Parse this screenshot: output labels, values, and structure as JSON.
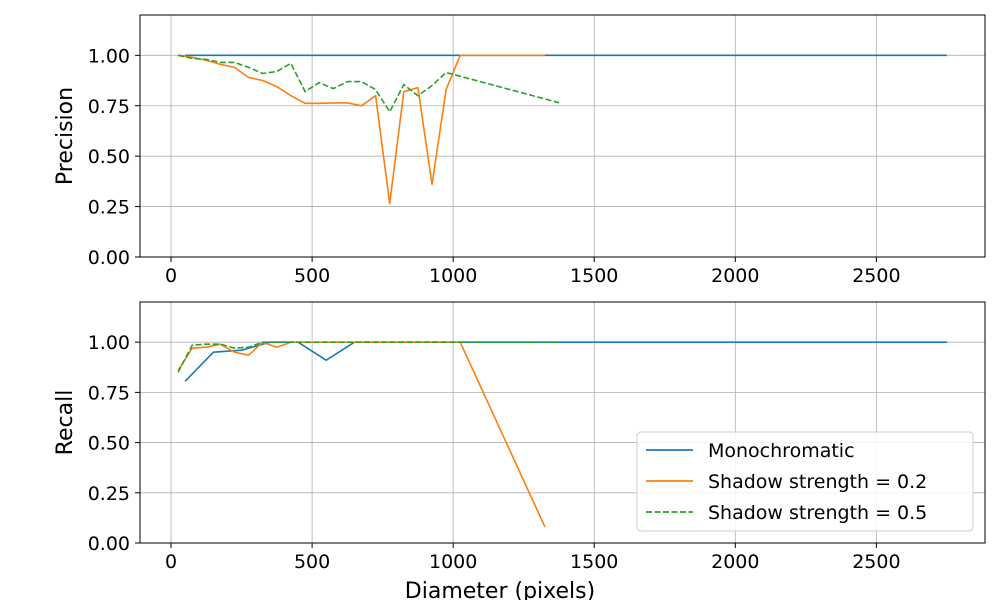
{
  "chart_data": [
    {
      "type": "line",
      "ylabel": "Precision",
      "xlim": [
        -110,
        2885
      ],
      "ylim": [
        0,
        1.2
      ],
      "xticks": [
        0,
        500,
        1000,
        1500,
        2000,
        2500
      ],
      "yticks": [
        0,
        0.25,
        0.5,
        0.75,
        1.0
      ],
      "xtick_labels": [
        "0",
        "500",
        "1000",
        "1500",
        "2000",
        "2500"
      ],
      "ytick_labels": [
        "0.00",
        "0.25",
        "0.50",
        "0.75",
        "1.00"
      ],
      "grid": true,
      "series": [
        {
          "name": "Monochromatic",
          "color": "#1f77b4",
          "dash": "solid",
          "points": [
            [
              50,
              1.0
            ],
            [
              150,
              1.0
            ],
            [
              250,
              1.0
            ],
            [
              350,
              1.0
            ],
            [
              450,
              1.0
            ],
            [
              550,
              1.0
            ],
            [
              650,
              1.0
            ],
            [
              750,
              1.0
            ],
            [
              850,
              1.0
            ],
            [
              950,
              1.0
            ],
            [
              1050,
              1.0
            ],
            [
              1350,
              1.0
            ],
            [
              1500,
              1.0
            ],
            [
              2000,
              1.0
            ],
            [
              2500,
              1.0
            ],
            [
              2750,
              1.0
            ]
          ]
        },
        {
          "name": "Shadow strength = 0.2",
          "color": "#ff7f0e",
          "dash": "solid",
          "points": [
            [
              25,
              1.0
            ],
            [
              75,
              0.99
            ],
            [
              125,
              0.975
            ],
            [
              175,
              0.955
            ],
            [
              225,
              0.94
            ],
            [
              275,
              0.89
            ],
            [
              325,
              0.875
            ],
            [
              375,
              0.845
            ],
            [
              425,
              0.8
            ],
            [
              475,
              0.762
            ],
            [
              525,
              0.762
            ],
            [
              575,
              0.764
            ],
            [
              625,
              0.764
            ],
            [
              675,
              0.75
            ],
            [
              725,
              0.8
            ],
            [
              775,
              0.265
            ],
            [
              825,
              0.82
            ],
            [
              875,
              0.84
            ],
            [
              925,
              0.36
            ],
            [
              975,
              0.83
            ],
            [
              1025,
              1.0
            ],
            [
              1325,
              1.0
            ]
          ]
        },
        {
          "name": "Shadow strength = 0.5",
          "color": "#2ca02c",
          "dash": "dashed",
          "points": [
            [
              25,
              1.0
            ],
            [
              75,
              0.985
            ],
            [
              125,
              0.98
            ],
            [
              175,
              0.965
            ],
            [
              225,
              0.965
            ],
            [
              275,
              0.94
            ],
            [
              325,
              0.91
            ],
            [
              375,
              0.92
            ],
            [
              425,
              0.96
            ],
            [
              475,
              0.82
            ],
            [
              525,
              0.865
            ],
            [
              575,
              0.835
            ],
            [
              625,
              0.87
            ],
            [
              675,
              0.87
            ],
            [
              725,
              0.83
            ],
            [
              775,
              0.72
            ],
            [
              825,
              0.855
            ],
            [
              875,
              0.8
            ],
            [
              925,
              0.85
            ],
            [
              975,
              0.915
            ],
            [
              1375,
              0.765
            ]
          ]
        }
      ]
    },
    {
      "type": "line",
      "xlabel": "Diameter (pixels)",
      "ylabel": "Recall",
      "xlim": [
        -110,
        2885
      ],
      "ylim": [
        0,
        1.2
      ],
      "xticks": [
        0,
        500,
        1000,
        1500,
        2000,
        2500
      ],
      "yticks": [
        0,
        0.25,
        0.5,
        0.75,
        1.0
      ],
      "xtick_labels": [
        "0",
        "500",
        "1000",
        "1500",
        "2000",
        "2500"
      ],
      "ytick_labels": [
        "0.00",
        "0.25",
        "0.50",
        "0.75",
        "1.00"
      ],
      "grid": true,
      "legend_position": "lower-right",
      "series": [
        {
          "name": "Monochromatic",
          "color": "#1f77b4",
          "dash": "solid",
          "points": [
            [
              50,
              0.805
            ],
            [
              150,
              0.95
            ],
            [
              250,
              0.96
            ],
            [
              350,
              1.0
            ],
            [
              450,
              1.0
            ],
            [
              550,
              0.91
            ],
            [
              650,
              1.0
            ],
            [
              750,
              1.0
            ],
            [
              1000,
              1.0
            ],
            [
              1500,
              1.0
            ],
            [
              2000,
              1.0
            ],
            [
              2750,
              1.0
            ]
          ]
        },
        {
          "name": "Shadow strength = 0.2",
          "color": "#ff7f0e",
          "dash": "solid",
          "points": [
            [
              25,
              0.86
            ],
            [
              75,
              0.97
            ],
            [
              125,
              0.975
            ],
            [
              175,
              0.99
            ],
            [
              225,
              0.95
            ],
            [
              275,
              0.935
            ],
            [
              325,
              1.0
            ],
            [
              375,
              0.975
            ],
            [
              425,
              1.0
            ],
            [
              475,
              1.0
            ],
            [
              525,
              1.0
            ],
            [
              1025,
              1.0
            ],
            [
              1325,
              0.08
            ]
          ]
        },
        {
          "name": "Shadow strength = 0.5",
          "color": "#2ca02c",
          "dash": "dashed",
          "points": [
            [
              25,
              0.85
            ],
            [
              75,
              0.985
            ],
            [
              125,
              0.99
            ],
            [
              175,
              0.99
            ],
            [
              225,
              0.97
            ],
            [
              275,
              0.975
            ],
            [
              325,
              1.0
            ],
            [
              375,
              1.0
            ],
            [
              425,
              1.0
            ],
            [
              1375,
              1.0
            ]
          ]
        }
      ]
    }
  ]
}
